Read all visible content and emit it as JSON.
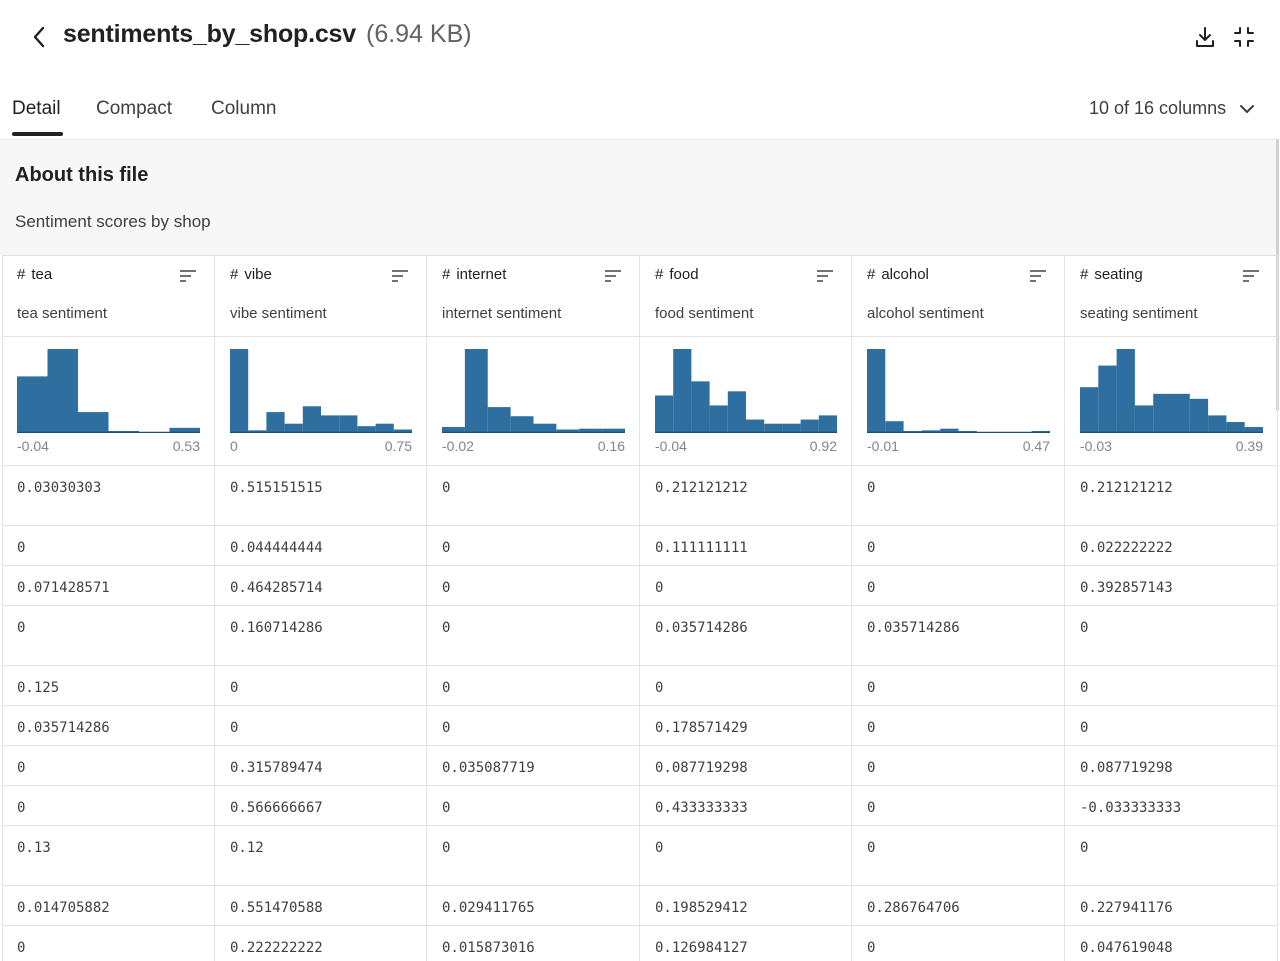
{
  "header": {
    "filename": "sentiments_by_shop.csv",
    "filesize": "(6.94 KB)",
    "back_icon": "chevron-left-icon",
    "download_icon": "download-icon",
    "collapse_icon": "collapse-icon"
  },
  "tabs": [
    {
      "label": "Detail",
      "active": true
    },
    {
      "label": "Compact",
      "active": false
    },
    {
      "label": "Column",
      "active": false
    }
  ],
  "column_selector": "10 of 16 columns",
  "about": {
    "title": "About this file",
    "description": "Sentiment scores by shop"
  },
  "columns": [
    {
      "type_icon": "#",
      "name": "tea",
      "description": "tea sentiment",
      "min": "-0.04",
      "max": "0.53",
      "hist": [
        0.67,
        1.0,
        0.24,
        0.01,
        0.0,
        0.05
      ]
    },
    {
      "type_icon": "#",
      "name": "vibe",
      "description": "vibe sentiment",
      "min": "0",
      "max": "0.75",
      "hist": [
        1.0,
        0.02,
        0.24,
        0.1,
        0.31,
        0.2,
        0.2,
        0.07,
        0.1,
        0.03
      ]
    },
    {
      "type_icon": "#",
      "name": "internet",
      "description": "internet sentiment",
      "min": "-0.02",
      "max": "0.16",
      "hist": [
        0.06,
        1.0,
        0.3,
        0.19,
        0.1,
        0.03,
        0.04,
        0.04
      ]
    },
    {
      "type_icon": "#",
      "name": "food",
      "description": "food sentiment",
      "min": "-0.04",
      "max": "0.92",
      "hist": [
        0.44,
        1.0,
        0.61,
        0.32,
        0.49,
        0.15,
        0.1,
        0.1,
        0.15,
        0.2
      ]
    },
    {
      "type_icon": "#",
      "name": "alcohol",
      "description": "alcohol sentiment",
      "min": "-0.01",
      "max": "0.47",
      "hist": [
        1.0,
        0.13,
        0.01,
        0.02,
        0.04,
        0.01,
        0.0,
        0.0,
        0.0,
        0.01
      ]
    },
    {
      "type_icon": "#",
      "name": "seating",
      "description": "seating sentiment",
      "min": "-0.03",
      "max": "0.39",
      "hist": [
        0.54,
        0.8,
        1.0,
        0.32,
        0.46,
        0.46,
        0.4,
        0.2,
        0.12,
        0.06
      ]
    }
  ],
  "rows": [
    [
      "0.03030303",
      "0.515151515",
      "0",
      "0.212121212",
      "0",
      "0.212121212"
    ],
    [
      "0",
      "0.044444444",
      "0",
      "0.111111111",
      "0",
      "0.022222222"
    ],
    [
      "0.071428571",
      "0.464285714",
      "0",
      "0",
      "0",
      "0.392857143"
    ],
    [
      "0",
      "0.160714286",
      "0",
      "0.035714286",
      "0.035714286",
      "0"
    ],
    [
      "0.125",
      "0",
      "0",
      "0",
      "0",
      "0"
    ],
    [
      "0.035714286",
      "0",
      "0",
      "0.178571429",
      "0",
      "0"
    ],
    [
      "0",
      "0.315789474",
      "0.035087719",
      "0.087719298",
      "0",
      "0.087719298"
    ],
    [
      "0",
      "0.566666667",
      "0",
      "0.433333333",
      "0",
      "-0.033333333"
    ],
    [
      "0.13",
      "0.12",
      "0",
      "0",
      "0",
      "0"
    ],
    [
      "0.014705882",
      "0.551470588",
      "0.029411765",
      "0.198529412",
      "0.286764706",
      "0.227941176"
    ],
    [
      "0",
      "0.222222222",
      "0.015873016",
      "0.126984127",
      "0",
      "0.047619048"
    ]
  ],
  "colors": {
    "bar": "#2f6f9f",
    "border": "#e3e3e3",
    "about_bg": "#f7f7f7"
  }
}
